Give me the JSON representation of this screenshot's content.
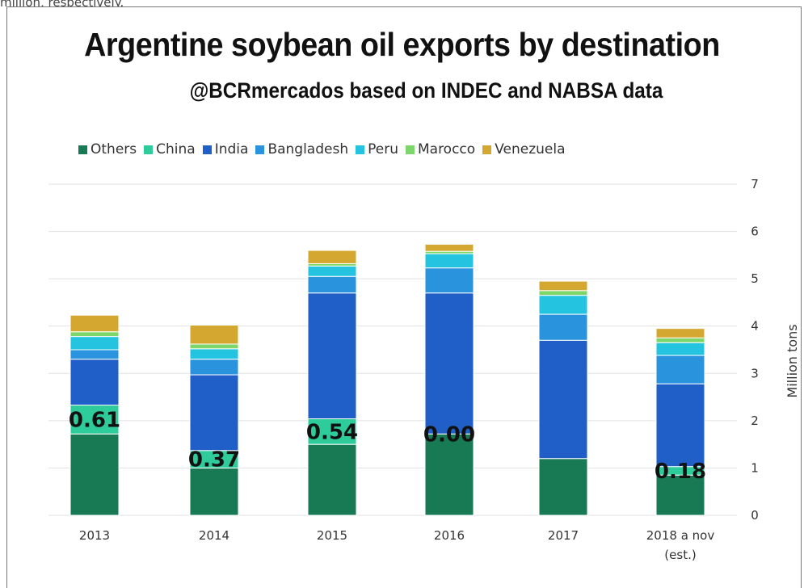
{
  "caption_fragment": "million, respectively.",
  "chart_data": {
    "type": "bar",
    "stacked": true,
    "title": "Argentine soybean oil exports by destination",
    "subtitle": "@BCRmercados based on INDEC and NABSA data",
    "xlabel": "",
    "ylabel": "Million tons",
    "ylim": [
      0,
      7
    ],
    "yticks": [
      0,
      1,
      2,
      3,
      4,
      5,
      6,
      7
    ],
    "grid": true,
    "legend_position": "top",
    "categories": [
      "2013",
      "2014",
      "2015",
      "2016",
      "2017",
      "2018 a nov\n(est.)"
    ],
    "category_lines": [
      [
        "2013"
      ],
      [
        "2014"
      ],
      [
        "2015"
      ],
      [
        "2016"
      ],
      [
        "2017"
      ],
      [
        "2018 a nov",
        "(est.)"
      ]
    ],
    "series": [
      {
        "name": "Others",
        "color": "#177a55",
        "values": [
          1.72,
          1.0,
          1.5,
          1.72,
          1.2,
          0.85
        ]
      },
      {
        "name": "China",
        "color": "#2ecc9a",
        "values": [
          0.61,
          0.37,
          0.54,
          0.0,
          0.0,
          0.18
        ]
      },
      {
        "name": "India",
        "color": "#1f5fc7",
        "values": [
          0.97,
          1.6,
          2.66,
          2.98,
          2.5,
          1.75
        ]
      },
      {
        "name": "Bangladesh",
        "color": "#2a93dd",
        "values": [
          0.2,
          0.33,
          0.35,
          0.53,
          0.55,
          0.6
        ]
      },
      {
        "name": "Peru",
        "color": "#24c4e0",
        "values": [
          0.28,
          0.22,
          0.22,
          0.3,
          0.4,
          0.27
        ]
      },
      {
        "name": "Marocco",
        "color": "#7dd66a",
        "values": [
          0.1,
          0.1,
          0.05,
          0.05,
          0.1,
          0.1
        ]
      },
      {
        "name": "Venezuela",
        "color": "#d4a830",
        "values": [
          0.35,
          0.4,
          0.28,
          0.15,
          0.2,
          0.2
        ]
      }
    ],
    "data_labels": {
      "series": "China",
      "values": [
        "0.61",
        "0.37",
        "0.54",
        "0.00",
        "",
        "0.18"
      ]
    }
  }
}
